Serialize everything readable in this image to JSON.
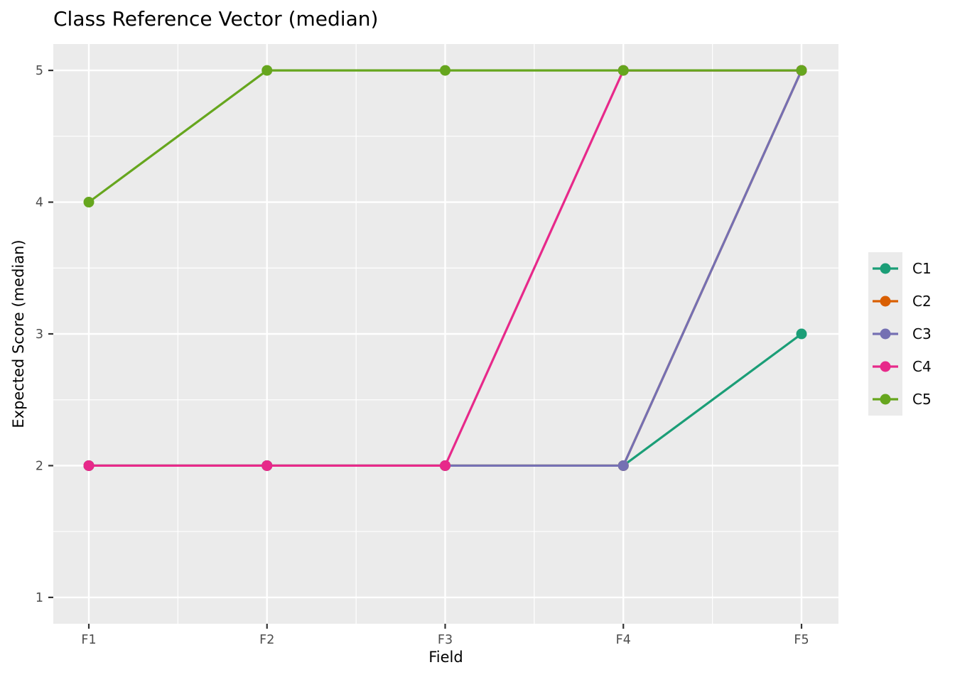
{
  "chart_data": {
    "type": "line",
    "title": "Class Reference Vector (median)",
    "xlabel": "Field",
    "ylabel": "Expected Score (median)",
    "categories": [
      "F1",
      "F2",
      "F3",
      "F4",
      "F5"
    ],
    "series": [
      {
        "name": "C1",
        "color": "#1B9E77",
        "values": [
          2,
          2,
          2,
          2,
          3
        ]
      },
      {
        "name": "C2",
        "color": "#D95F02",
        "values": [
          2,
          2,
          2,
          2,
          5
        ]
      },
      {
        "name": "C3",
        "color": "#7570B3",
        "values": [
          2,
          2,
          2,
          2,
          5
        ]
      },
      {
        "name": "C4",
        "color": "#E7298A",
        "values": [
          2,
          2,
          2,
          5,
          5
        ]
      },
      {
        "name": "C5",
        "color": "#66A61E",
        "values": [
          4,
          5,
          5,
          5,
          5
        ]
      }
    ],
    "yticks": [
      "1",
      "2",
      "3",
      "4",
      "5"
    ],
    "ytick_values": [
      1,
      2,
      3,
      4,
      5
    ],
    "ylim": [
      0.8,
      5.2
    ],
    "grid": "major+minor",
    "legend_position": "right",
    "marker": "circle",
    "panel_bg": "#EBEBEB",
    "grid_color": "#FFFFFF",
    "tick_label_color": "#4D4D4D",
    "tick_mark_color": "#333333"
  }
}
